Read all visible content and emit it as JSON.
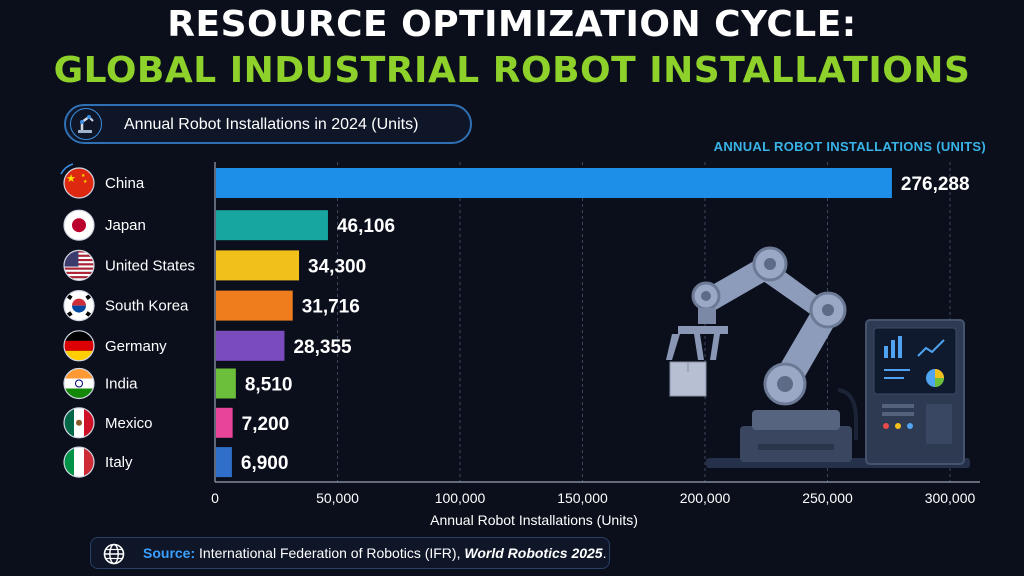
{
  "header": {
    "title_line1": "RESOURCE OPTIMIZATION CYCLE:",
    "title_line2": "GLOBAL INDUSTRIAL ROBOT INSTALLATIONS",
    "subtitle": "Annual Robot Installations in 2024 (Units)",
    "legend_label": "ANNUAL ROBOT INSTALLATIONS (UNITS)"
  },
  "source": {
    "label": "Source:",
    "text": "International Federation of Robotics (IFR),",
    "publication": "World Robotics 2025",
    "end": "."
  },
  "icons": {
    "subtitle": "robot-arm-icon",
    "source": "globe-icon",
    "illustration": "robot-arm-illustration"
  },
  "chart_data": {
    "type": "bar",
    "orientation": "horizontal",
    "title": "Annual Robot Installations in 2024 (Units)",
    "xlabel": "Annual Robot Installations (Units)",
    "xlim": [
      0,
      300000
    ],
    "x_ticks": [
      0,
      50000,
      100000,
      150000,
      200000,
      250000,
      300000
    ],
    "x_tick_labels": [
      "0",
      "50,000",
      "100,000",
      "150,000",
      "200,000",
      "250,000",
      "300,000"
    ],
    "grid": "vertical dashed",
    "categories": [
      "China",
      "Japan",
      "United States",
      "South Korea",
      "Germany",
      "India",
      "Mexico",
      "Italy"
    ],
    "values": [
      276288,
      46106,
      34300,
      31716,
      28355,
      8510,
      7200,
      6900
    ],
    "value_labels": [
      "276,288",
      "46,106",
      "34,300",
      "31,716",
      "28,355",
      "8,510",
      "7,200",
      "6,900"
    ],
    "bar_colors": [
      "#1e8fe8",
      "#18a7a0",
      "#f2c01b",
      "#ef7d1e",
      "#7a4bbd",
      "#6cbf3a",
      "#e8449a",
      "#2f6fc9"
    ],
    "flags": [
      "china-flag-icon",
      "japan-flag-icon",
      "united-states-flag-icon",
      "south-korea-flag-icon",
      "germany-flag-icon",
      "india-flag-icon",
      "mexico-flag-icon",
      "italy-flag-icon"
    ]
  }
}
